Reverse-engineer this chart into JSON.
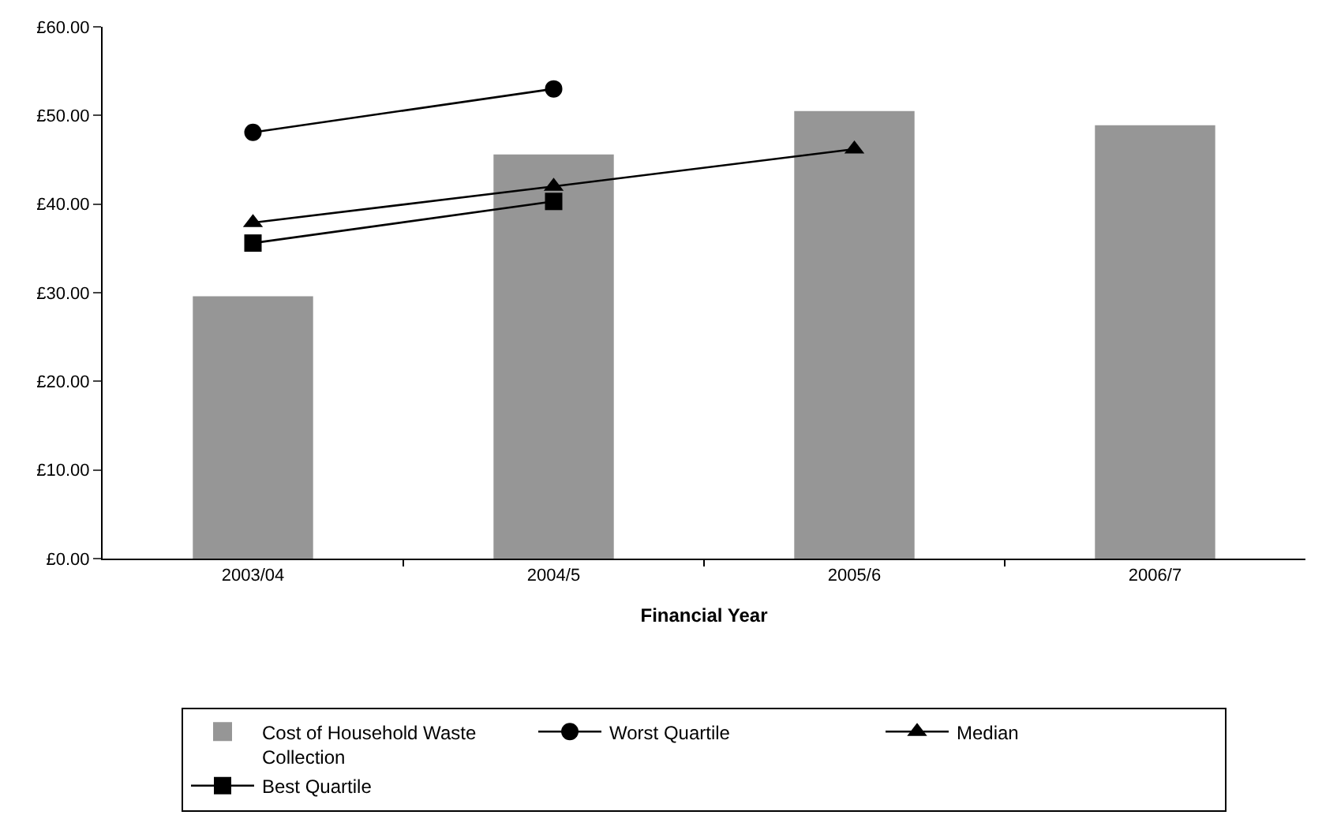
{
  "chart_data": {
    "type": "bar",
    "xlabel": "Financial Year",
    "categories": [
      "2003/04",
      "2004/5",
      "2005/6",
      "2006/7"
    ],
    "series": [
      {
        "name": "Cost of Household Waste Collection",
        "color": "#969696",
        "values": [
          29.6,
          45.6,
          50.5,
          48.9
        ]
      },
      {
        "name": "Worst Quartile",
        "type": "line",
        "color": "#000000",
        "marker": "circle",
        "values": [
          48.1,
          53.0,
          null,
          null
        ]
      },
      {
        "name": "Median",
        "type": "line",
        "color": "#000000",
        "marker": "triangle",
        "values": [
          37.9,
          42.0,
          46.2,
          null
        ]
      },
      {
        "name": "Best Quartile",
        "type": "line",
        "color": "#000000",
        "marker": "square",
        "values": [
          35.6,
          40.3,
          null,
          null
        ]
      }
    ],
    "ylim": [
      0,
      60
    ],
    "yticks": [
      {
        "value": 0,
        "label": "£0.00"
      },
      {
        "value": 10,
        "label": "£10.00"
      },
      {
        "value": 20,
        "label": "£20.00"
      },
      {
        "value": 30,
        "label": "£30.00"
      },
      {
        "value": 40,
        "label": "£40.00"
      },
      {
        "value": 50,
        "label": "£50.00"
      },
      {
        "value": 60,
        "label": "£60.00"
      }
    ],
    "legend": "bottom"
  }
}
